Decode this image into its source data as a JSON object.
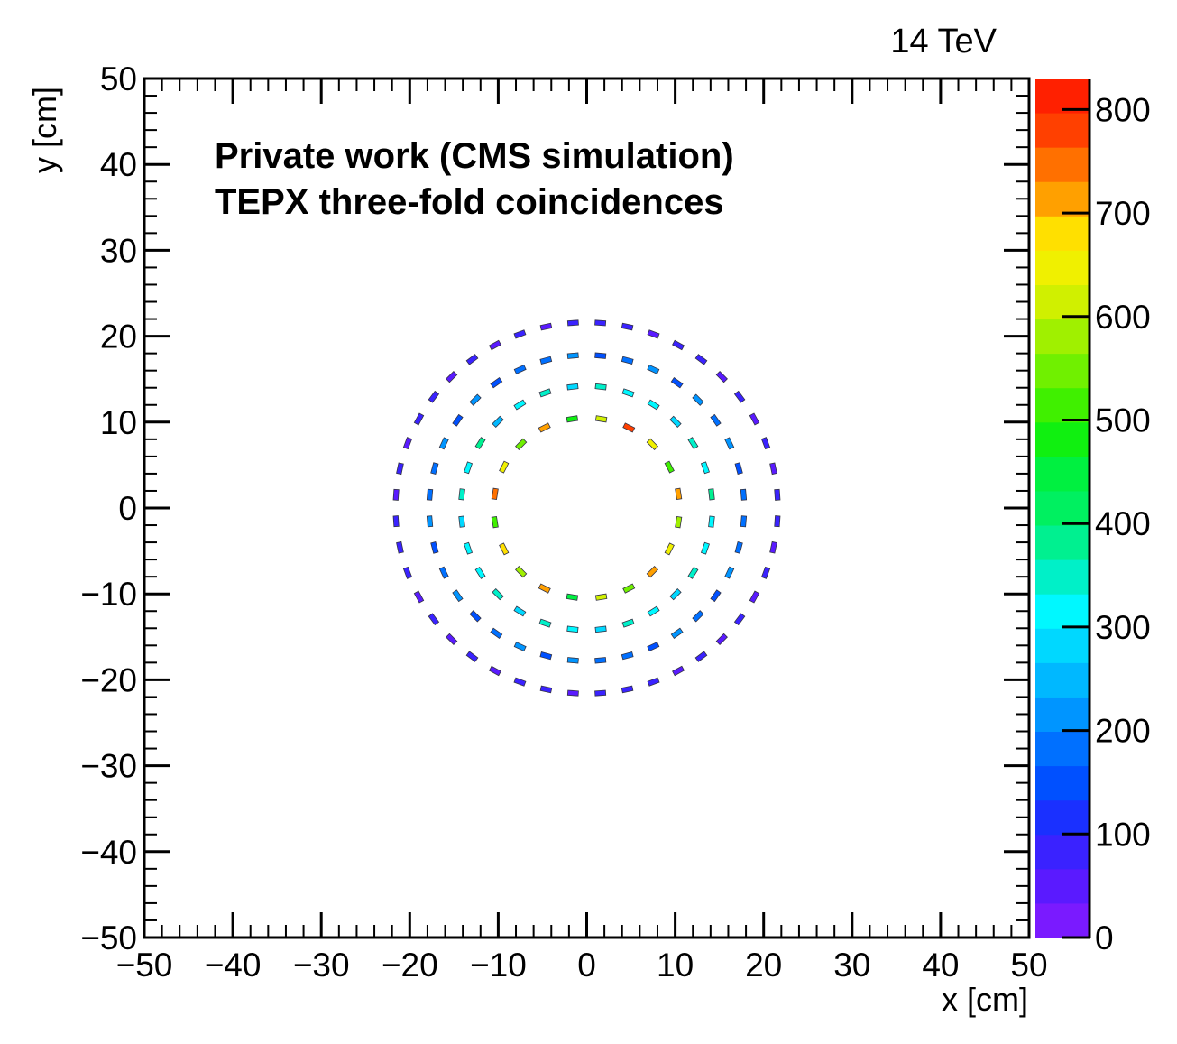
{
  "chart_data": {
    "type": "heatmap",
    "energy_label": "14 TeV",
    "annotations": [
      "Private work (CMS simulation)",
      "TEPX three-fold coincidences"
    ],
    "xlabel": "x [cm]",
    "ylabel": "y [cm]",
    "xlim": [
      -50,
      50
    ],
    "ylim": [
      -50,
      50
    ],
    "x_ticks": [
      "−50",
      "−40",
      "−30",
      "−20",
      "−10",
      "0",
      "10",
      "20",
      "30",
      "40",
      "50"
    ],
    "y_ticks": [
      "−50",
      "−40",
      "−30",
      "−20",
      "−10",
      "0",
      "10",
      "20",
      "30",
      "40",
      "50"
    ],
    "grid": false,
    "colorbar": {
      "range": [
        0,
        830
      ],
      "tick_values": [
        0,
        100,
        200,
        300,
        400,
        500,
        600,
        700,
        800
      ],
      "tick_labels": [
        "0",
        "100",
        "200",
        "300",
        "400",
        "500",
        "600",
        "700",
        "800"
      ],
      "palette": [
        "#7a1aff",
        "#5a1aff",
        "#3a22ff",
        "#1a30ff",
        "#0050ff",
        "#0070ff",
        "#0095ff",
        "#00b8ff",
        "#00d8ff",
        "#00f8ff",
        "#00f0c8",
        "#00f090",
        "#00f060",
        "#00f040",
        "#10f010",
        "#40f000",
        "#70f000",
        "#a0f000",
        "#d0f000",
        "#f0f000",
        "#ffe000",
        "#ffa000",
        "#ff7000",
        "#ff4000",
        "#ff2000"
      ]
    },
    "rings": [
      {
        "radius_cm": 10.5,
        "modules": 20,
        "values": [
          720,
          520,
          650,
          780,
          600,
          480,
          700,
          560,
          640,
          760,
          500,
          680,
          590,
          720,
          450,
          620,
          540,
          700,
          660,
          580
        ]
      },
      {
        "radius_cm": 14.2,
        "modules": 28,
        "values": [
          380,
          300,
          350,
          270,
          330,
          310,
          360,
          290,
          340,
          320,
          260,
          370,
          300,
          350,
          280,
          330,
          310,
          360,
          290,
          340,
          300,
          270,
          350,
          320,
          290,
          360,
          310,
          330
        ]
      },
      {
        "radius_cm": 17.8,
        "modules": 36,
        "values": [
          190,
          150,
          210,
          170,
          230,
          160,
          200,
          180,
          140,
          220,
          170,
          190,
          150,
          210,
          160,
          200,
          180,
          170,
          230,
          150,
          190,
          210,
          160,
          180,
          200,
          140,
          220,
          170,
          190,
          160,
          210,
          180,
          150,
          200,
          170,
          190
        ]
      },
      {
        "radius_cm": 21.6,
        "modules": 44,
        "values": [
          70,
          60,
          80,
          65,
          75,
          55,
          85,
          70,
          60,
          78,
          68,
          72,
          58,
          82,
          66,
          74,
          62,
          80,
          70,
          64,
          76,
          60,
          84,
          68,
          72,
          56,
          78,
          66,
          70,
          62,
          80,
          74,
          60,
          76,
          68,
          72,
          64,
          82,
          58,
          70,
          66,
          78,
          62,
          74
        ]
      }
    ]
  }
}
